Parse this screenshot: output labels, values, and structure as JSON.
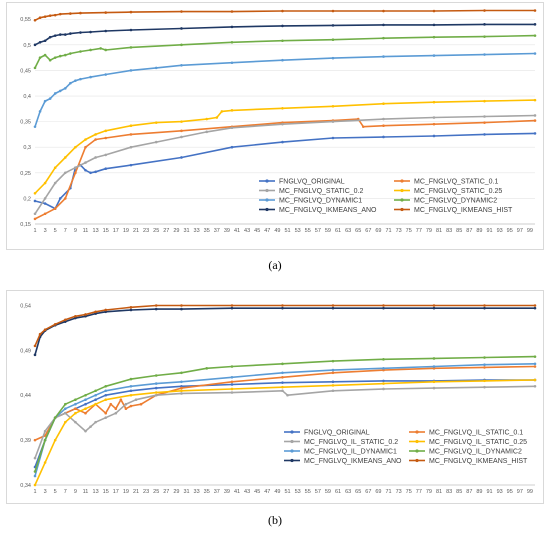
{
  "captions": {
    "a": "(a)",
    "b": "(b)"
  },
  "chart_data": [
    {
      "type": "line",
      "x_range": [
        1,
        100
      ],
      "x_tick_labels": [
        "1",
        "3",
        "5",
        "7",
        "9",
        "11",
        "13",
        "15",
        "17",
        "19",
        "21",
        "23",
        "25",
        "27",
        "29",
        "31",
        "33",
        "35",
        "37",
        "39",
        "41",
        "43",
        "45",
        "47",
        "49",
        "51",
        "53",
        "55",
        "57",
        "59",
        "61",
        "63",
        "65",
        "67",
        "69",
        "71",
        "73",
        "75",
        "77",
        "79",
        "81",
        "83",
        "85",
        "87",
        "89",
        "91",
        "93",
        "95",
        "97",
        "99"
      ],
      "ylim": [
        0.15,
        0.57
      ],
      "y_ticks": [
        0.15,
        0.2,
        0.25,
        0.3,
        0.35,
        0.4,
        0.45,
        0.5,
        0.55
      ],
      "y_tick_labels": [
        "0,15",
        "0,2",
        "0,25",
        "0,3",
        "0,35",
        "0,4",
        "0,45",
        "0,5",
        "0,55"
      ],
      "grid": true,
      "legend_position": "bottom-right",
      "series": [
        {
          "name": "FNGLVQ_ORIGINAL",
          "color": "#4472c4",
          "x": [
            1,
            3,
            5,
            6,
            8,
            9,
            10,
            11,
            12,
            13,
            15,
            20,
            30,
            40,
            50,
            60,
            70,
            80,
            90,
            100
          ],
          "y": [
            0.195,
            0.19,
            0.18,
            0.2,
            0.22,
            0.26,
            0.265,
            0.255,
            0.25,
            0.252,
            0.258,
            0.265,
            0.28,
            0.3,
            0.31,
            0.318,
            0.32,
            0.322,
            0.325,
            0.327
          ]
        },
        {
          "name": "MC_FNGLVQ_STATIC_0.1",
          "color": "#ed7d31",
          "x": [
            1,
            3,
            5,
            7,
            9,
            11,
            13,
            15,
            20,
            30,
            40,
            50,
            60,
            65,
            66,
            70,
            80,
            90,
            100
          ],
          "y": [
            0.16,
            0.17,
            0.18,
            0.2,
            0.25,
            0.3,
            0.315,
            0.318,
            0.325,
            0.332,
            0.34,
            0.348,
            0.352,
            0.355,
            0.34,
            0.342,
            0.345,
            0.348,
            0.352
          ]
        },
        {
          "name": "MC_FNGLVQ_STATIC_0.2",
          "color": "#a5a5a5",
          "x": [
            1,
            3,
            5,
            7,
            9,
            11,
            13,
            15,
            20,
            25,
            30,
            35,
            40,
            50,
            60,
            70,
            80,
            90,
            100
          ],
          "y": [
            0.17,
            0.2,
            0.23,
            0.25,
            0.26,
            0.27,
            0.28,
            0.285,
            0.3,
            0.31,
            0.32,
            0.33,
            0.338,
            0.345,
            0.35,
            0.355,
            0.358,
            0.36,
            0.362
          ]
        },
        {
          "name": "MC_FNGLVQ_STATIC_0.25",
          "color": "#ffc000",
          "x": [
            1,
            3,
            5,
            7,
            9,
            11,
            13,
            15,
            20,
            25,
            30,
            35,
            37,
            38,
            40,
            50,
            60,
            70,
            80,
            90,
            100
          ],
          "y": [
            0.21,
            0.23,
            0.26,
            0.28,
            0.3,
            0.315,
            0.325,
            0.332,
            0.342,
            0.348,
            0.35,
            0.355,
            0.358,
            0.37,
            0.372,
            0.376,
            0.38,
            0.385,
            0.388,
            0.39,
            0.392
          ]
        },
        {
          "name": "MC_FNGLVQ_DYNAMIC1",
          "color": "#5b9bd5",
          "x": [
            1,
            2,
            3,
            4,
            5,
            6,
            7,
            8,
            9,
            10,
            12,
            15,
            20,
            25,
            30,
            40,
            50,
            60,
            70,
            80,
            90,
            100
          ],
          "y": [
            0.34,
            0.37,
            0.39,
            0.395,
            0.405,
            0.41,
            0.415,
            0.425,
            0.43,
            0.433,
            0.437,
            0.442,
            0.45,
            0.455,
            0.46,
            0.465,
            0.47,
            0.474,
            0.477,
            0.479,
            0.481,
            0.483
          ]
        },
        {
          "name": "MC_FNGLVQ_DYNAMIC2",
          "color": "#70ad47",
          "x": [
            1,
            2,
            3,
            4,
            5,
            6,
            7,
            8,
            10,
            12,
            14,
            15,
            20,
            30,
            40,
            50,
            60,
            70,
            80,
            90,
            100
          ],
          "y": [
            0.455,
            0.475,
            0.48,
            0.47,
            0.475,
            0.478,
            0.48,
            0.483,
            0.487,
            0.49,
            0.493,
            0.49,
            0.495,
            0.5,
            0.505,
            0.508,
            0.51,
            0.513,
            0.515,
            0.516,
            0.518
          ]
        },
        {
          "name": "MC_FNGLVQ_IKMEANS_ANO",
          "color": "#1f3864",
          "x": [
            1,
            2,
            3,
            4,
            5,
            6,
            7,
            8,
            10,
            12,
            15,
            20,
            30,
            40,
            50,
            60,
            70,
            80,
            90,
            100
          ],
          "y": [
            0.5,
            0.505,
            0.508,
            0.515,
            0.518,
            0.52,
            0.52,
            0.522,
            0.524,
            0.525,
            0.527,
            0.529,
            0.532,
            0.535,
            0.537,
            0.538,
            0.539,
            0.539,
            0.54,
            0.54
          ]
        },
        {
          "name": "MC_FNGLVQ_IKMEANS_HIST",
          "color": "#c55a11",
          "x": [
            1,
            2,
            3,
            4,
            5,
            6,
            8,
            10,
            15,
            20,
            30,
            40,
            50,
            60,
            70,
            80,
            90,
            100
          ],
          "y": [
            0.548,
            0.553,
            0.555,
            0.557,
            0.558,
            0.56,
            0.561,
            0.562,
            0.563,
            0.564,
            0.565,
            0.565,
            0.566,
            0.566,
            0.566,
            0.566,
            0.567,
            0.567
          ]
        }
      ]
    },
    {
      "type": "line",
      "x_range": [
        1,
        100
      ],
      "x_tick_labels": [
        "1",
        "3",
        "5",
        "7",
        "9",
        "11",
        "13",
        "15",
        "17",
        "19",
        "21",
        "23",
        "25",
        "27",
        "29",
        "31",
        "33",
        "35",
        "37",
        "39",
        "41",
        "43",
        "45",
        "47",
        "49",
        "51",
        "53",
        "55",
        "57",
        "59",
        "61",
        "63",
        "65",
        "67",
        "69",
        "71",
        "73",
        "75",
        "77",
        "79",
        "81",
        "83",
        "85",
        "87",
        "89",
        "91",
        "93",
        "95",
        "97",
        "99"
      ],
      "ylim": [
        0.34,
        0.545
      ],
      "y_ticks": [
        0.34,
        0.39,
        0.44,
        0.49,
        0.54
      ],
      "y_tick_labels": [
        "0,34",
        "0,39",
        "0,44",
        "0,49",
        "0,54"
      ],
      "grid": false,
      "legend_position": "bottom-right",
      "series": [
        {
          "name": "FNGLVQ_ORIGINAL",
          "color": "#4472c4",
          "x": [
            1,
            3,
            5,
            7,
            9,
            11,
            13,
            15,
            20,
            25,
            30,
            40,
            50,
            60,
            70,
            80,
            90,
            100
          ],
          "y": [
            0.36,
            0.39,
            0.415,
            0.42,
            0.425,
            0.43,
            0.435,
            0.44,
            0.445,
            0.448,
            0.45,
            0.452,
            0.454,
            0.455,
            0.456,
            0.456,
            0.457,
            0.457
          ]
        },
        {
          "name": "MC_FNGLVQ_IL_STATIC_0.1",
          "color": "#ed7d31",
          "x": [
            1,
            3,
            5,
            7,
            9,
            11,
            13,
            15,
            16,
            17,
            18,
            19,
            20,
            22,
            25,
            30,
            40,
            50,
            60,
            70,
            80,
            90,
            100
          ],
          "y": [
            0.39,
            0.395,
            0.415,
            0.42,
            0.425,
            0.42,
            0.43,
            0.42,
            0.43,
            0.425,
            0.435,
            0.425,
            0.428,
            0.43,
            0.44,
            0.448,
            0.455,
            0.46,
            0.465,
            0.468,
            0.47,
            0.471,
            0.472
          ]
        },
        {
          "name": "MC_FNGLVQ_IL_STATIC_0.2",
          "color": "#a5a5a5",
          "x": [
            1,
            3,
            5,
            7,
            9,
            11,
            12,
            13,
            15,
            17,
            19,
            21,
            25,
            30,
            40,
            50,
            51,
            60,
            70,
            80,
            90,
            100
          ],
          "y": [
            0.37,
            0.4,
            0.415,
            0.42,
            0.41,
            0.4,
            0.405,
            0.41,
            0.415,
            0.42,
            0.43,
            0.435,
            0.44,
            0.442,
            0.443,
            0.445,
            0.44,
            0.445,
            0.447,
            0.448,
            0.449,
            0.45
          ]
        },
        {
          "name": "MC_FNGLVQ_IL_STATIC_0.25",
          "color": "#ffc000",
          "x": [
            1,
            3,
            5,
            7,
            9,
            11,
            13,
            15,
            20,
            25,
            30,
            40,
            50,
            60,
            70,
            80,
            90,
            100
          ],
          "y": [
            0.34,
            0.365,
            0.39,
            0.41,
            0.42,
            0.425,
            0.43,
            0.435,
            0.44,
            0.443,
            0.445,
            0.447,
            0.449,
            0.451,
            0.453,
            0.455,
            0.456,
            0.457
          ]
        },
        {
          "name": "MC_FNGLVQ_IL_DYNAMIC1",
          "color": "#5b9bd5",
          "x": [
            1,
            3,
            5,
            7,
            9,
            11,
            13,
            15,
            20,
            25,
            30,
            40,
            50,
            60,
            70,
            80,
            90,
            100
          ],
          "y": [
            0.35,
            0.39,
            0.415,
            0.425,
            0.43,
            0.435,
            0.44,
            0.445,
            0.45,
            0.453,
            0.455,
            0.46,
            0.465,
            0.468,
            0.47,
            0.472,
            0.474,
            0.475
          ]
        },
        {
          "name": "MC_FNGLVQ_IL_DYNAMIC2",
          "color": "#70ad47",
          "x": [
            1,
            3,
            5,
            7,
            9,
            11,
            13,
            15,
            20,
            25,
            30,
            35,
            40,
            50,
            60,
            70,
            80,
            90,
            100
          ],
          "y": [
            0.355,
            0.39,
            0.415,
            0.43,
            0.435,
            0.44,
            0.445,
            0.45,
            0.458,
            0.462,
            0.465,
            0.47,
            0.472,
            0.475,
            0.478,
            0.48,
            0.481,
            0.482,
            0.483
          ]
        },
        {
          "name": "MC_FNGLVQ_IKMEANS_ANO",
          "color": "#1f3864",
          "x": [
            1,
            2,
            3,
            5,
            7,
            9,
            11,
            13,
            15,
            20,
            25,
            30,
            40,
            50,
            60,
            70,
            80,
            90,
            100
          ],
          "y": [
            0.485,
            0.505,
            0.512,
            0.518,
            0.522,
            0.526,
            0.528,
            0.531,
            0.533,
            0.535,
            0.536,
            0.536,
            0.537,
            0.537,
            0.537,
            0.537,
            0.537,
            0.537,
            0.537
          ]
        },
        {
          "name": "MC_FNGLVQ_IKMEANS_HIST",
          "color": "#c55a11",
          "x": [
            1,
            2,
            3,
            5,
            7,
            9,
            11,
            13,
            15,
            20,
            25,
            30,
            40,
            50,
            60,
            70,
            80,
            90,
            100
          ],
          "y": [
            0.495,
            0.508,
            0.513,
            0.519,
            0.524,
            0.528,
            0.53,
            0.533,
            0.535,
            0.538,
            0.54,
            0.54,
            0.54,
            0.54,
            0.54,
            0.54,
            0.54,
            0.54,
            0.54
          ]
        }
      ]
    }
  ]
}
